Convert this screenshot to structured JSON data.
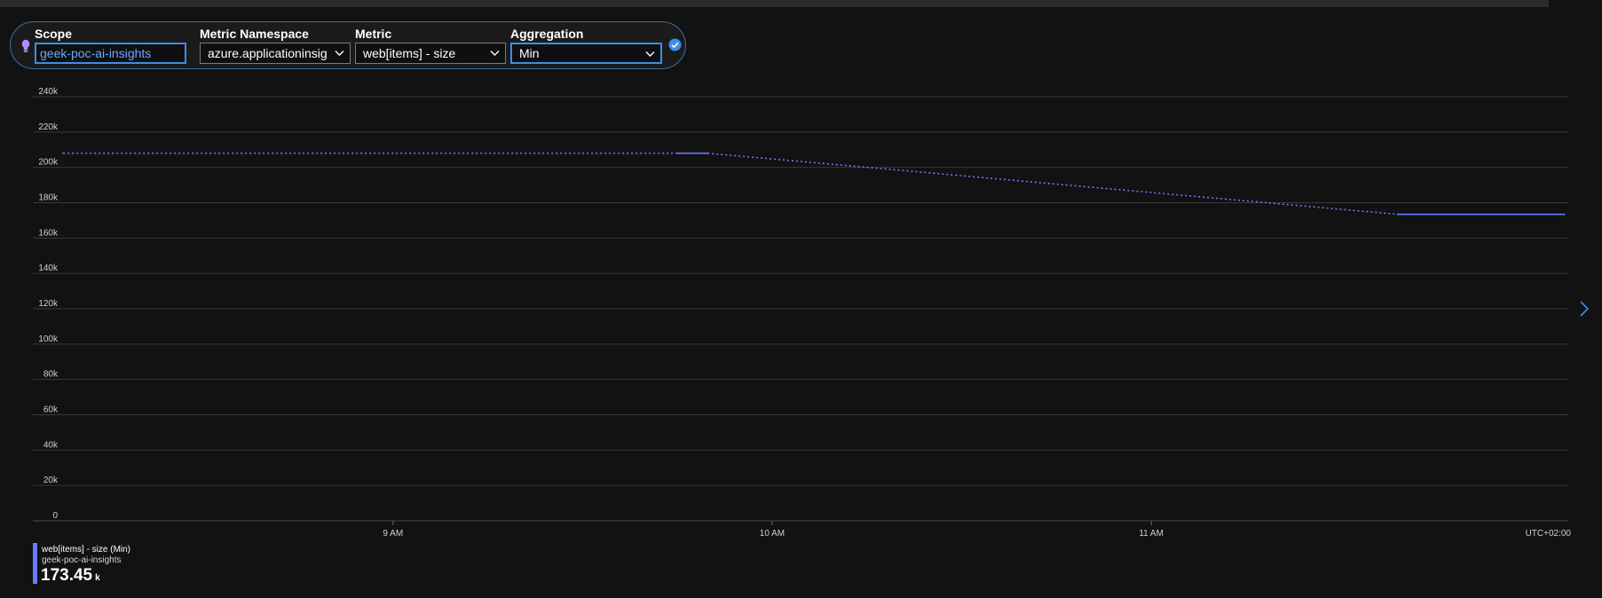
{
  "metric_selector": {
    "scope": {
      "label": "Scope",
      "value": "geek-poc-ai-insights"
    },
    "namespace": {
      "label": "Metric Namespace",
      "value": "azure.applicationinsig"
    },
    "metric": {
      "label": "Metric",
      "value": "web[items] - size"
    },
    "aggregation": {
      "label": "Aggregation",
      "value": "Min"
    }
  },
  "colors": {
    "series": "#6b78ff",
    "accent": "#3d8ee6",
    "gridline": "#3a3a3a"
  },
  "legend": {
    "series_label": "web[items] - size (Min)",
    "resource_label": "geek-poc-ai-insights",
    "value": "173.45",
    "unit": "k"
  },
  "icons": [
    "lightbulb-icon",
    "check-circle-icon",
    "chevron-down-icon",
    "chevron-right-icon"
  ],
  "chart_data": {
    "type": "line",
    "y_ticks": [
      "0",
      "20k",
      "40k",
      "60k",
      "80k",
      "100k",
      "120k",
      "140k",
      "160k",
      "180k",
      "200k",
      "220k",
      "240k"
    ],
    "ylim": [
      0,
      240000
    ],
    "x_ticks": [
      {
        "label": "9 AM",
        "hour": 9
      },
      {
        "label": "10 AM",
        "hour": 10
      },
      {
        "label": "11 AM",
        "hour": 11
      }
    ],
    "timezone_label": "UTC+02:00",
    "xlim": [
      8.05,
      12.1
    ],
    "series": [
      {
        "points": [
          {
            "hour": 8.13,
            "value": 208000,
            "style": "dotted"
          },
          {
            "hour": 9.75,
            "value": 208000,
            "style": "solid"
          },
          {
            "hour": 9.83,
            "value": 208000,
            "style": "dotted"
          },
          {
            "hour": 11.65,
            "value": 173450,
            "style": "solid"
          },
          {
            "hour": 12.09,
            "value": 173450,
            "style": "end"
          }
        ]
      }
    ],
    "grid": true
  }
}
